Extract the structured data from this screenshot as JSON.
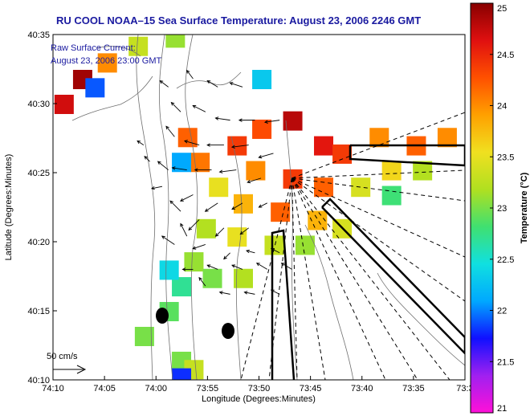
{
  "chart_data": {
    "type": "heatmap",
    "title": "RU COOL  NOAA–15  Sea Surface Temperature:  August 23, 2006 2246 GMT",
    "xlabel": "Longitude (Degrees:Minutes)",
    "ylabel": "Latitude (Degrees:Minutes)",
    "x_ticks": [
      "74:10",
      "74:05",
      "74:00",
      "73:55",
      "73:50",
      "73:45",
      "73:40",
      "73:35",
      "73:3"
    ],
    "y_ticks": [
      "40:10",
      "40:15",
      "40:20",
      "40:25",
      "40:30",
      "40:35"
    ],
    "xlim_deg": [
      -74.1667,
      -73.5
    ],
    "ylim_deg": [
      40.1667,
      40.5833
    ],
    "colorbar": {
      "label": "Temperature (°C)",
      "range": [
        21,
        25
      ],
      "ticks": [
        "21",
        "21.5",
        "22",
        "22.5",
        "23",
        "23.5",
        "24",
        "24.5",
        "25"
      ],
      "stops": [
        "#ff10d8",
        "#a020f0",
        "#1010ff",
        "#00a8ff",
        "#10e0e0",
        "#40e070",
        "#b0e020",
        "#f0e020",
        "#ffa000",
        "#ff5000",
        "#e01010",
        "#880000"
      ]
    },
    "annotations": [
      "Raw Surface Current:",
      "August 23, 2006 23:00 GMT"
    ],
    "scale_label": "50 cm/s",
    "sst_patches": [
      {
        "lon": -73.95,
        "lat": 40.46,
        "temp": 24.2
      },
      {
        "lon": -73.93,
        "lat": 40.43,
        "temp": 24.1
      },
      {
        "lon": -73.87,
        "lat": 40.45,
        "temp": 24.4
      },
      {
        "lon": -73.83,
        "lat": 40.47,
        "temp": 24.3
      },
      {
        "lon": -73.78,
        "lat": 40.48,
        "temp": 24.8
      },
      {
        "lon": -73.73,
        "lat": 40.45,
        "temp": 24.6
      },
      {
        "lon": -73.7,
        "lat": 40.44,
        "temp": 24.4
      },
      {
        "lon": -73.64,
        "lat": 40.46,
        "temp": 24.0
      },
      {
        "lon": -73.58,
        "lat": 40.45,
        "temp": 24.2
      },
      {
        "lon": -73.53,
        "lat": 40.46,
        "temp": 24.0
      },
      {
        "lon": -73.62,
        "lat": 40.42,
        "temp": 23.6
      },
      {
        "lon": -73.57,
        "lat": 40.42,
        "temp": 23.2
      },
      {
        "lon": -73.84,
        "lat": 40.42,
        "temp": 24.0
      },
      {
        "lon": -73.78,
        "lat": 40.41,
        "temp": 24.4
      },
      {
        "lon": -73.73,
        "lat": 40.4,
        "temp": 24.2
      },
      {
        "lon": -73.67,
        "lat": 40.4,
        "temp": 23.4
      },
      {
        "lon": -73.62,
        "lat": 40.39,
        "temp": 22.8
      },
      {
        "lon": -73.9,
        "lat": 40.4,
        "temp": 23.5
      },
      {
        "lon": -73.86,
        "lat": 40.38,
        "temp": 23.8
      },
      {
        "lon": -73.8,
        "lat": 40.37,
        "temp": 24.2
      },
      {
        "lon": -73.74,
        "lat": 40.36,
        "temp": 23.8
      },
      {
        "lon": -73.7,
        "lat": 40.35,
        "temp": 23.4
      },
      {
        "lon": -73.92,
        "lat": 40.35,
        "temp": 23.2
      },
      {
        "lon": -73.87,
        "lat": 40.34,
        "temp": 23.5
      },
      {
        "lon": -73.81,
        "lat": 40.33,
        "temp": 23.3
      },
      {
        "lon": -73.76,
        "lat": 40.33,
        "temp": 23.1
      },
      {
        "lon": -73.94,
        "lat": 40.31,
        "temp": 23.1
      },
      {
        "lon": -73.96,
        "lat": 40.28,
        "temp": 22.7
      },
      {
        "lon": -73.91,
        "lat": 40.29,
        "temp": 23.0
      },
      {
        "lon": -73.86,
        "lat": 40.29,
        "temp": 23.2
      },
      {
        "lon": -73.98,
        "lat": 40.25,
        "temp": 22.9
      },
      {
        "lon": -74.02,
        "lat": 40.22,
        "temp": 23.0
      },
      {
        "lon": -74.12,
        "lat": 40.53,
        "temp": 24.9
      },
      {
        "lon": -74.15,
        "lat": 40.5,
        "temp": 24.7
      },
      {
        "lon": -74.08,
        "lat": 40.55,
        "temp": 24.0
      },
      {
        "lon": -74.03,
        "lat": 40.57,
        "temp": 23.3
      },
      {
        "lon": -73.97,
        "lat": 40.58,
        "temp": 23.1
      },
      {
        "lon": -73.96,
        "lat": 40.19,
        "temp": 23.0
      },
      {
        "lon": -73.94,
        "lat": 40.18,
        "temp": 23.3
      },
      {
        "lon": -73.98,
        "lat": 40.3,
        "temp": 22.4
      },
      {
        "lon": -73.96,
        "lat": 40.43,
        "temp": 22.1
      },
      {
        "lon": -73.83,
        "lat": 40.53,
        "temp": 22.3
      },
      {
        "lon": -74.1,
        "lat": 40.52,
        "temp": 21.9
      },
      {
        "lon": -73.96,
        "lat": 40.17,
        "temp": 21.8
      }
    ],
    "current_vectors": [
      {
        "lon": -73.98,
        "lat": 40.52,
        "u": -8,
        "v": 6
      },
      {
        "lon": -73.94,
        "lat": 40.53,
        "u": -6,
        "v": 8
      },
      {
        "lon": -73.9,
        "lat": 40.52,
        "u": -10,
        "v": 6
      },
      {
        "lon": -73.86,
        "lat": 40.52,
        "u": -12,
        "v": 4
      },
      {
        "lon": -73.96,
        "lat": 40.49,
        "u": -9,
        "v": 9
      },
      {
        "lon": -73.92,
        "lat": 40.49,
        "u": -12,
        "v": 6
      },
      {
        "lon": -73.88,
        "lat": 40.48,
        "u": -14,
        "v": 2
      },
      {
        "lon": -73.84,
        "lat": 40.48,
        "u": -15,
        "v": 0
      },
      {
        "lon": -73.8,
        "lat": 40.48,
        "u": -14,
        "v": -2
      },
      {
        "lon": -73.97,
        "lat": 40.46,
        "u": -8,
        "v": 10
      },
      {
        "lon": -73.93,
        "lat": 40.45,
        "u": -14,
        "v": 4
      },
      {
        "lon": -73.89,
        "lat": 40.45,
        "u": -16,
        "v": 0
      },
      {
        "lon": -73.85,
        "lat": 40.45,
        "u": -16,
        "v": -2
      },
      {
        "lon": -73.81,
        "lat": 40.44,
        "u": -14,
        "v": -4
      },
      {
        "lon": -73.95,
        "lat": 40.42,
        "u": -14,
        "v": 2
      },
      {
        "lon": -73.91,
        "lat": 40.42,
        "u": -16,
        "v": 0
      },
      {
        "lon": -73.87,
        "lat": 40.42,
        "u": -16,
        "v": -2
      },
      {
        "lon": -73.83,
        "lat": 40.41,
        "u": -13,
        "v": -4
      },
      {
        "lon": -73.98,
        "lat": 40.42,
        "u": -10,
        "v": 8
      },
      {
        "lon": -74.02,
        "lat": 40.45,
        "u": -6,
        "v": 4
      },
      {
        "lon": -74.01,
        "lat": 40.43,
        "u": -5,
        "v": 5
      },
      {
        "lon": -73.94,
        "lat": 40.39,
        "u": -12,
        "v": -6
      },
      {
        "lon": -73.9,
        "lat": 40.38,
        "u": -12,
        "v": -8
      },
      {
        "lon": -73.86,
        "lat": 40.38,
        "u": -10,
        "v": -6
      },
      {
        "lon": -73.82,
        "lat": 40.38,
        "u": -8,
        "v": -4
      },
      {
        "lon": -73.96,
        "lat": 40.37,
        "u": -10,
        "v": 10
      },
      {
        "lon": -73.93,
        "lat": 40.36,
        "u": -10,
        "v": -10
      },
      {
        "lon": -73.89,
        "lat": 40.35,
        "u": -8,
        "v": -8
      },
      {
        "lon": -73.85,
        "lat": 40.35,
        "u": -8,
        "v": -6
      },
      {
        "lon": -73.95,
        "lat": 40.34,
        "u": -6,
        "v": 12
      },
      {
        "lon": -73.92,
        "lat": 40.33,
        "u": -12,
        "v": -4
      },
      {
        "lon": -73.88,
        "lat": 40.32,
        "u": -6,
        "v": -6
      },
      {
        "lon": -73.84,
        "lat": 40.32,
        "u": -8,
        "v": 2
      },
      {
        "lon": -73.8,
        "lat": 40.32,
        "u": -8,
        "v": 4
      },
      {
        "lon": -73.94,
        "lat": 40.3,
        "u": -10,
        "v": 0
      },
      {
        "lon": -73.9,
        "lat": 40.3,
        "u": -10,
        "v": 4
      },
      {
        "lon": -73.86,
        "lat": 40.3,
        "u": -10,
        "v": 4
      },
      {
        "lon": -73.82,
        "lat": 40.3,
        "u": -10,
        "v": 6
      },
      {
        "lon": -73.78,
        "lat": 40.3,
        "u": -10,
        "v": 6
      },
      {
        "lon": -73.92,
        "lat": 40.28,
        "u": -6,
        "v": 8
      },
      {
        "lon": -73.88,
        "lat": 40.27,
        "u": -10,
        "v": 2
      },
      {
        "lon": -73.84,
        "lat": 40.27,
        "u": -10,
        "v": 2
      },
      {
        "lon": -73.8,
        "lat": 40.27,
        "u": -8,
        "v": 4
      },
      {
        "lon": -73.99,
        "lat": 40.4,
        "u": -10,
        "v": -2
      },
      {
        "lon": -73.97,
        "lat": 40.33,
        "u": -12,
        "v": 8
      }
    ],
    "bathymetry_contours": true,
    "radial_lines_origin": {
      "lon": -73.78,
      "lat": 40.41
    }
  }
}
